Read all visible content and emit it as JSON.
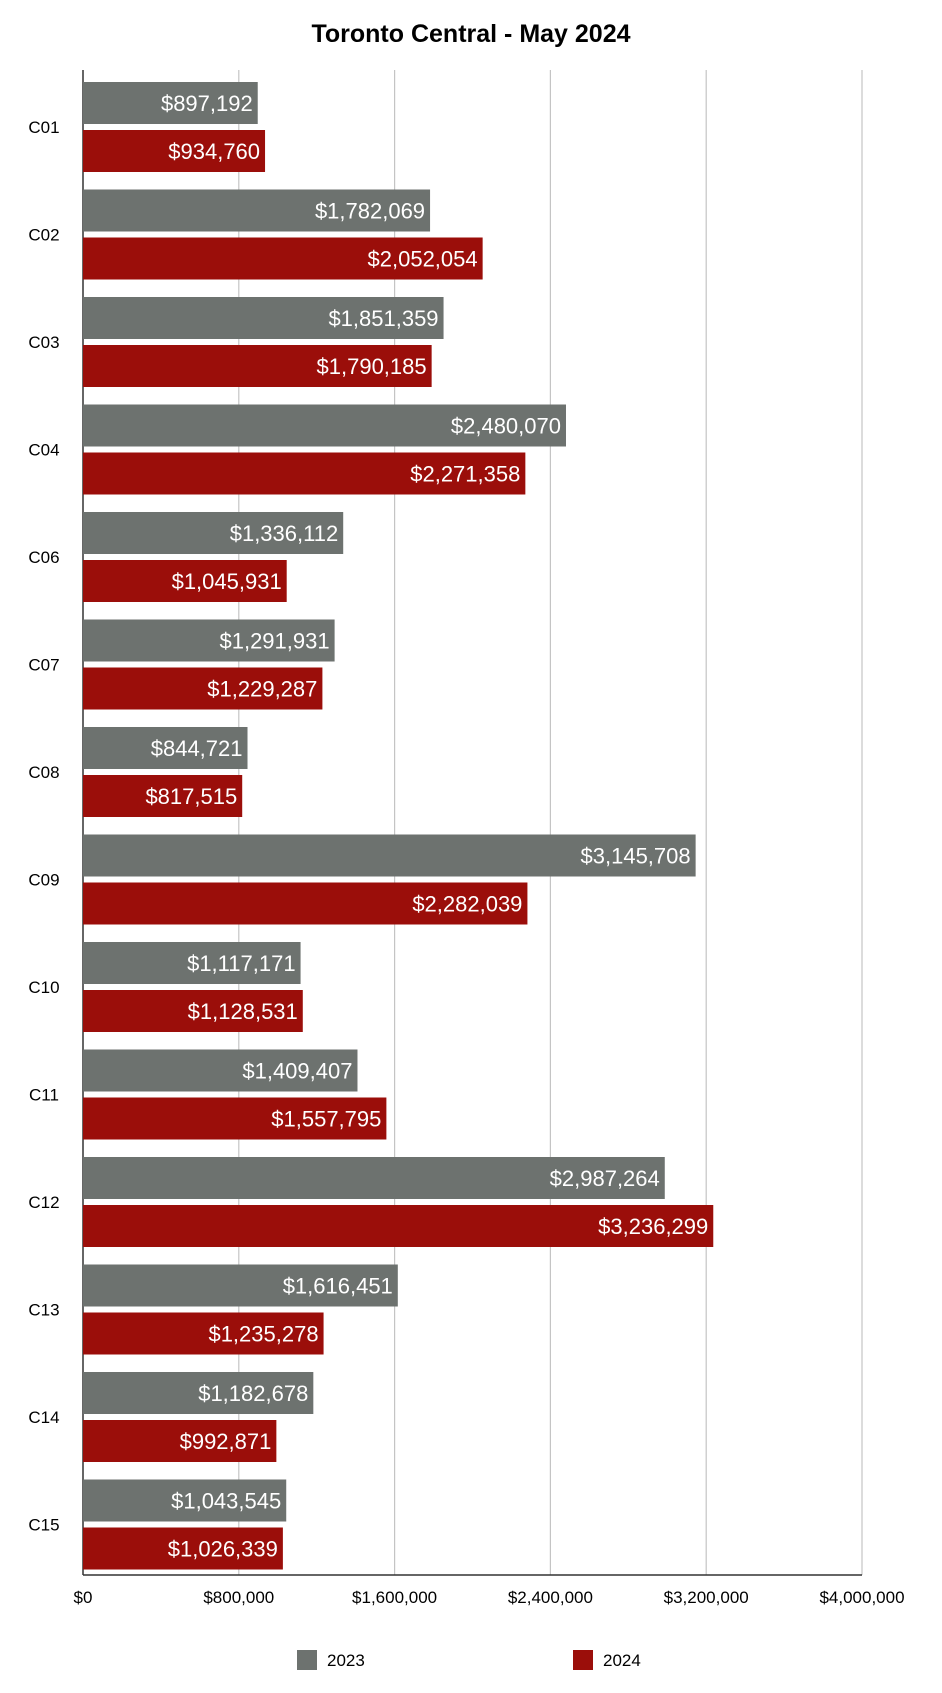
{
  "chart_data": {
    "type": "bar",
    "orientation": "horizontal",
    "title": "Toronto Central - May 2024",
    "xlabel": "",
    "ylabel": "",
    "categories": [
      "C01",
      "C02",
      "C03",
      "C04",
      "C06",
      "C07",
      "C08",
      "C09",
      "C10",
      "C11",
      "C12",
      "C13",
      "C14",
      "C15"
    ],
    "series": [
      {
        "name": "2023",
        "color": "#6d726f",
        "values": [
          897192,
          1782069,
          1851359,
          2480070,
          1336112,
          1291931,
          844721,
          3145708,
          1117171,
          1409407,
          2987264,
          1616451,
          1182678,
          1043545
        ],
        "labels": [
          "$897,192",
          "$1,782,069",
          "$1,851,359",
          "$2,480,070",
          "$1,336,112",
          "$1,291,931",
          "$844,721",
          "$3,145,708",
          "$1,117,171",
          "$1,409,407",
          "$2,987,264",
          "$1,616,451",
          "$1,182,678",
          "$1,043,545"
        ]
      },
      {
        "name": "2024",
        "color": "#9b0e0a",
        "values": [
          934760,
          2052054,
          1790185,
          2271358,
          1045931,
          1229287,
          817515,
          2282039,
          1128531,
          1557795,
          3236299,
          1235278,
          992871,
          1026339
        ],
        "labels": [
          "$934,760",
          "$2,052,054",
          "$1,790,185",
          "$2,271,358",
          "$1,045,931",
          "$1,229,287",
          "$817,515",
          "$2,282,039",
          "$1,128,531",
          "$1,557,795",
          "$3,236,299",
          "$1,235,278",
          "$992,871",
          "$1,026,339"
        ]
      }
    ],
    "xlim": [
      0,
      4000000
    ],
    "x_ticks": [
      0,
      800000,
      1600000,
      2400000,
      3200000,
      4000000
    ],
    "x_tick_labels": [
      "$0",
      "$800,000",
      "$1,600,000",
      "$2,400,000",
      "$3,200,000",
      "$4,000,000"
    ],
    "grid": true,
    "legend_position": "bottom",
    "label_color": "#ffffff"
  }
}
